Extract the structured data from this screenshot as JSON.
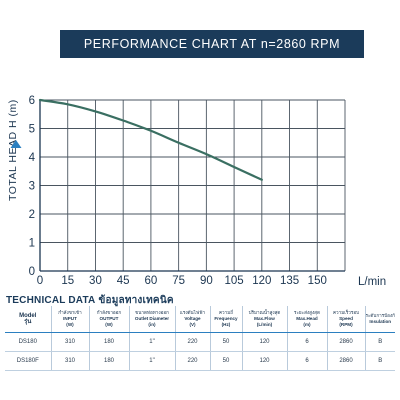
{
  "chart_data": {
    "type": "line",
    "title": "PERFORMANCE CHART AT  n=2860 RPM",
    "xlabel": "L/min",
    "ylabel": "TOTAL HEAD H (m)",
    "xlim": [
      0,
      165
    ],
    "ylim": [
      0,
      6
    ],
    "x_ticks": [
      0,
      15,
      30,
      45,
      60,
      75,
      90,
      105,
      120,
      135,
      150
    ],
    "y_ticks": [
      0,
      1,
      2,
      3,
      4,
      5,
      6
    ],
    "grid": true,
    "line_color": "#3a6f62",
    "series": [
      {
        "name": "",
        "x": [
          0,
          15,
          30,
          45,
          60,
          75,
          90,
          105,
          120
        ],
        "values": [
          6.0,
          5.85,
          5.6,
          5.28,
          4.92,
          4.5,
          4.1,
          3.65,
          3.2
        ]
      }
    ]
  },
  "technical_data": {
    "title_en": "TECHNICAL DATA",
    "title_th": "ข้อมูลทางเทคนิค",
    "columns": [
      {
        "th": "Model",
        "en": "รุ่น"
      },
      {
        "th": "กำลังขาเข้า",
        "en": "INPUT",
        "unit": "(W)"
      },
      {
        "th": "กำลังขาออก",
        "en": "OUTPUT",
        "unit": "(W)"
      },
      {
        "th": "ขนาดท่อทางออก",
        "en": "Outlet Diameter",
        "unit": "(in)"
      },
      {
        "th": "แรงดันไฟฟ้า",
        "en": "Voltage",
        "unit": "(V)"
      },
      {
        "th": "ความถี่",
        "en": "Frequency",
        "unit": "(Hz)"
      },
      {
        "th": "ปริมาณน้ำสูงสุด",
        "en": "Max.Flow",
        "unit": "(L/min)"
      },
      {
        "th": "ระยะส่งสูงสุด",
        "en": "Max.Head",
        "unit": "(m)"
      },
      {
        "th": "ความเร็วรอบ",
        "en": "Speed",
        "unit": "(RPM)"
      },
      {
        "th": "ระดับการป้องกัน",
        "en": "Insulation",
        "unit": ""
      }
    ],
    "rows": [
      [
        "DS180",
        "310",
        "180",
        "1\"",
        "220",
        "50",
        "120",
        "6",
        "2860",
        "B"
      ],
      [
        "DS180F",
        "310",
        "180",
        "1\"",
        "220",
        "50",
        "120",
        "6",
        "2860",
        "B"
      ]
    ]
  },
  "colors": {
    "banner": "#1b3b5a",
    "axis": "#1b3550",
    "grid": "#4a5560",
    "table_rule": "#2b7fc0",
    "arrow": "#2b7fc0"
  }
}
